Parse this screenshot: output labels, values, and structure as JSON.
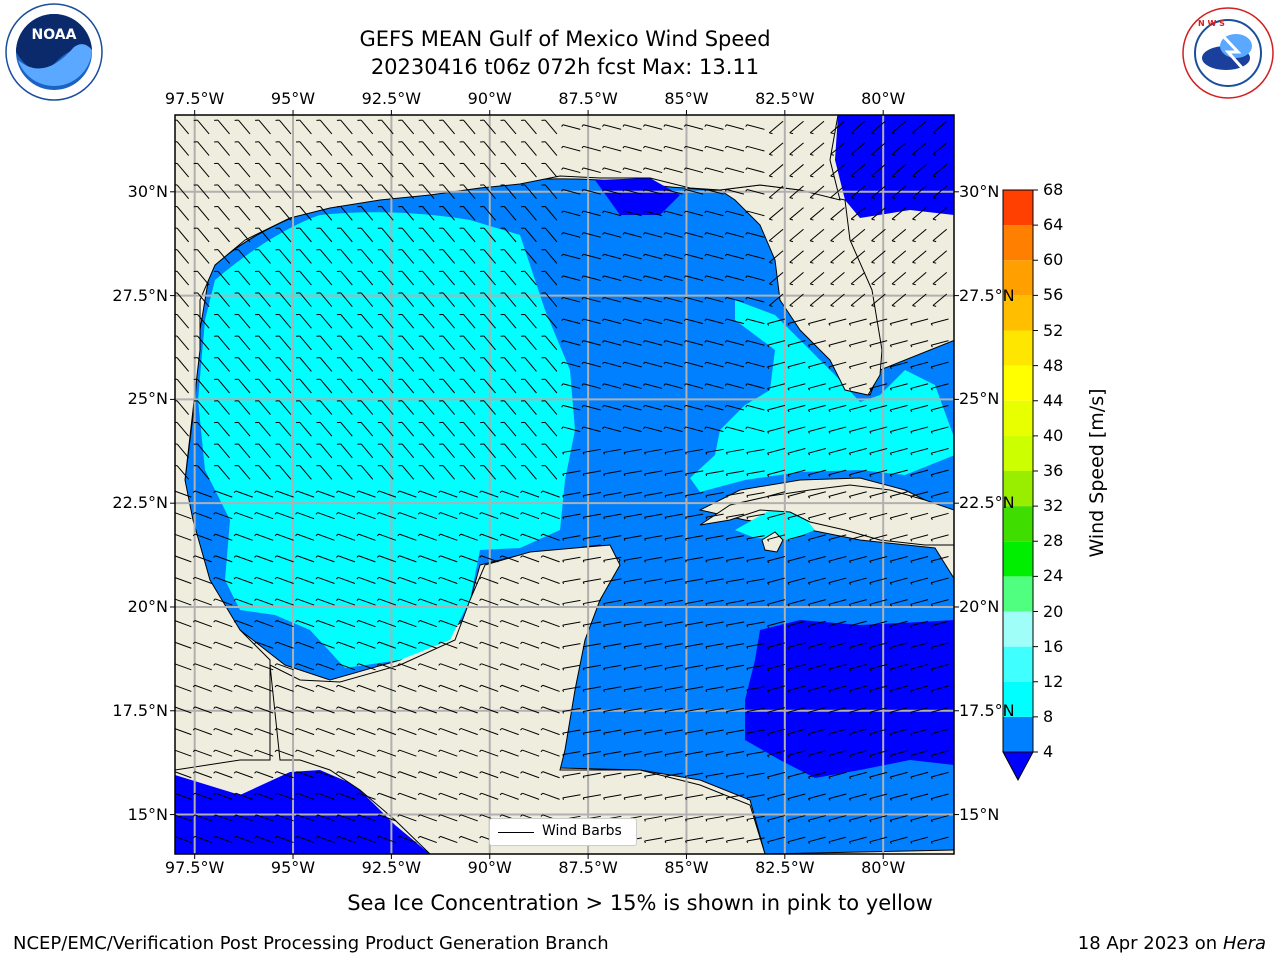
{
  "header": {
    "title_line1": "GEFS MEAN Gulf of Mexico Wind Speed",
    "title_line2": "20230416 t06z 072h fcst   Max: 13.11"
  },
  "logos": {
    "noaa_text": "NOAA",
    "noaa_ring": "NATIONAL OCEANIC AND ATMOSPHERIC ADMINISTRATION · U.S. DEPARTMENT OF COMMERCE",
    "nws_ring": "NATIONAL WEATHER SERVICE"
  },
  "chart_data": {
    "type": "heatmap",
    "title": "GEFS MEAN Gulf of Mexico Wind Speed",
    "subtitle": "20230416 t06z 072h fcst   Max: 13.11",
    "x_ticks": [
      "97.5°W",
      "95°W",
      "92.5°W",
      "90°W",
      "87.5°W",
      "85°W",
      "82.5°W",
      "80°W"
    ],
    "x_values": [
      -97.5,
      -95,
      -92.5,
      -90,
      -87.5,
      -85,
      -82.5,
      -80
    ],
    "y_ticks": [
      "30°N",
      "27.5°N",
      "25°N",
      "22.5°N",
      "20°N",
      "17.5°N",
      "15°N"
    ],
    "y_values": [
      30,
      27.5,
      25,
      22.5,
      20,
      17.5,
      15
    ],
    "xlim": [
      -98,
      -78.2
    ],
    "ylim": [
      14.05,
      31.85
    ],
    "grid": true,
    "legend": {
      "label": "Wind Barbs",
      "placement": "bottom-center"
    },
    "colorbar": {
      "label": "Wind Speed [m/s]",
      "ticks": [
        "4",
        "8",
        "12",
        "16",
        "20",
        "24",
        "28",
        "32",
        "36",
        "40",
        "44",
        "48",
        "52",
        "56",
        "60",
        "64",
        "68"
      ],
      "levels": [
        4,
        8,
        12,
        16,
        20,
        24,
        28,
        32,
        36,
        40,
        44,
        48,
        52,
        56,
        60,
        64,
        68
      ],
      "colors": [
        "#0080ff",
        "#00ffff",
        "#40ffff",
        "#9ffff8",
        "#50ff80",
        "#00ee00",
        "#40dd00",
        "#99ee00",
        "#ccff00",
        "#e8ff00",
        "#ffff00",
        "#ffe600",
        "#ffbf00",
        "#ffa000",
        "#ff7f00",
        "#ff4000",
        "#ff0000"
      ],
      "under_color": "#0000ff",
      "extend": "min"
    },
    "max_value": 13.11,
    "annotation": "Sea Ice Concentration > 15% is shown in pink to yellow"
  },
  "footer": {
    "left": "NCEP/EMC/Verification Post Processing Product Generation Branch",
    "right_date": "18 Apr 2023 on",
    "right_host": "Hera"
  }
}
